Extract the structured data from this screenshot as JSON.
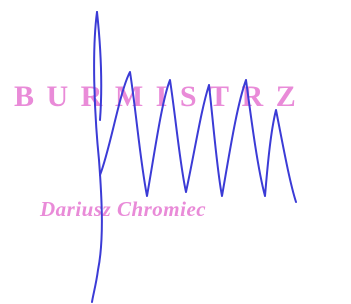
{
  "stamp": {
    "title": "BURMISTRZ",
    "name": "Dariusz Chromiec"
  }
}
